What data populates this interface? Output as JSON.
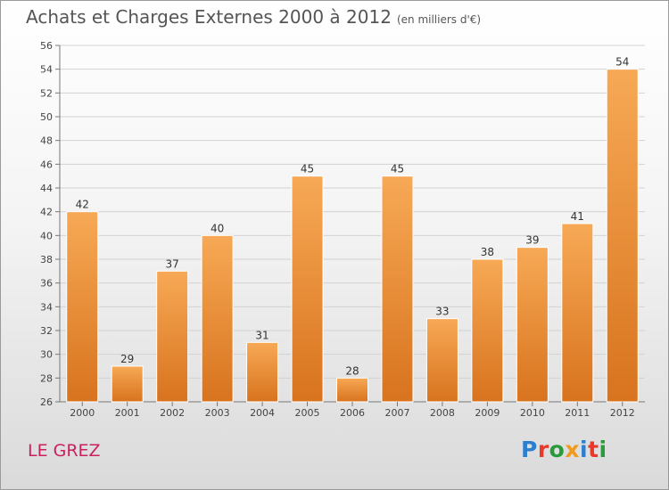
{
  "header": {
    "title": "Achats et Charges Externes 2000 à 2012",
    "subtitle": "(en milliers d'€)"
  },
  "footer": {
    "commune": "LE GREZ",
    "logo_text": "Proxiti"
  },
  "colors": {
    "bar_top": "#f7a955",
    "bar_bottom": "#d8731e",
    "commune": "#cc1f5f"
  },
  "chart_data": {
    "type": "bar",
    "title": "Achats et Charges Externes 2000 à 2012",
    "subtitle": "(en milliers d'€)",
    "categories": [
      "2000",
      "2001",
      "2002",
      "2003",
      "2004",
      "2005",
      "2006",
      "2007",
      "2008",
      "2009",
      "2010",
      "2011",
      "2012"
    ],
    "values": [
      42,
      29,
      37,
      40,
      31,
      45,
      28,
      45,
      33,
      38,
      39,
      41,
      54
    ],
    "ylim": [
      26,
      56
    ],
    "yticks": [
      26,
      28,
      30,
      32,
      34,
      36,
      38,
      40,
      42,
      44,
      46,
      48,
      50,
      52,
      54,
      56
    ],
    "grid": true,
    "data_labels": true
  }
}
